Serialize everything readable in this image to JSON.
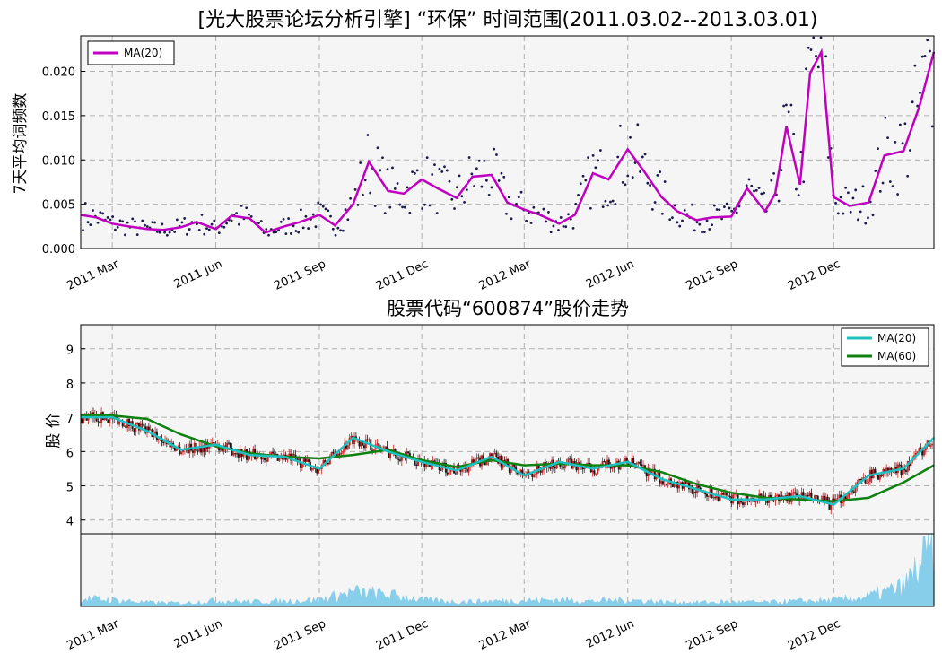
{
  "chart_data": [
    {
      "type": "scatter",
      "title": "[光大股票论坛分析引擎] “环保” 时间范围(2011.03.02--2013.03.01)",
      "ylabel": "7天平均词频数",
      "xlim": [
        "2011-02-01",
        "2013-02-28"
      ],
      "ylim": [
        0,
        0.024
      ],
      "yticks": [
        "0.000",
        "0.005",
        "0.010",
        "0.015",
        "0.020"
      ],
      "xticks": [
        "2011 Mar",
        "2011 Jun",
        "2011 Sep",
        "2011 Dec",
        "2012 Mar",
        "2012 Jun",
        "2012 Sep",
        "2012 Dec"
      ],
      "grid": true,
      "legend_position": "top-left",
      "series": [
        {
          "name": "MA(20)",
          "color": "#c000c0",
          "x": [
            "2011-02-01",
            "2011-02-15",
            "2011-03-01",
            "2011-03-15",
            "2011-04-01",
            "2011-04-15",
            "2011-05-01",
            "2011-05-15",
            "2011-06-01",
            "2011-06-15",
            "2011-07-01",
            "2011-07-15",
            "2011-08-01",
            "2011-08-15",
            "2011-09-01",
            "2011-09-15",
            "2011-10-01",
            "2011-10-15",
            "2011-11-01",
            "2011-11-15",
            "2011-12-01",
            "2011-12-15",
            "2012-01-01",
            "2012-01-15",
            "2012-02-01",
            "2012-02-15",
            "2012-03-01",
            "2012-03-15",
            "2012-04-01",
            "2012-04-15",
            "2012-05-01",
            "2012-05-15",
            "2012-06-01",
            "2012-06-15",
            "2012-07-01",
            "2012-07-15",
            "2012-08-01",
            "2012-08-15",
            "2012-09-01",
            "2012-09-15",
            "2012-10-01",
            "2012-10-10",
            "2012-10-20",
            "2012-11-01",
            "2012-11-10",
            "2012-11-20",
            "2012-12-01",
            "2012-12-15",
            "2013-01-01",
            "2013-01-15",
            "2013-02-01",
            "2013-02-15",
            "2013-02-28"
          ],
          "values": [
            0.0038,
            0.0035,
            0.0028,
            0.0025,
            0.0022,
            0.0021,
            0.0024,
            0.003,
            0.0022,
            0.0037,
            0.0034,
            0.0018,
            0.0025,
            0.003,
            0.0038,
            0.0026,
            0.005,
            0.0098,
            0.0065,
            0.0062,
            0.0078,
            0.0068,
            0.0057,
            0.0081,
            0.0083,
            0.0052,
            0.0044,
            0.0038,
            0.0028,
            0.0038,
            0.0085,
            0.0078,
            0.0112,
            0.0088,
            0.0058,
            0.0042,
            0.0032,
            0.0035,
            0.0036,
            0.0068,
            0.0042,
            0.0062,
            0.0138,
            0.0072,
            0.0198,
            0.0222,
            0.0058,
            0.0048,
            0.0052,
            0.0105,
            0.011,
            0.016,
            0.0222
          ]
        }
      ]
    },
    {
      "type": "candlestick",
      "title": "股票代码“600874”股价走势",
      "ylabel": "股 价",
      "xlim": [
        "2011-02-01",
        "2013-02-28"
      ],
      "ylim": [
        3.6,
        9.7
      ],
      "yticks": [
        "4",
        "5",
        "6",
        "7",
        "8",
        "9"
      ],
      "grid": true,
      "legend_position": "top-right",
      "series": [
        {
          "name": "MA(20)",
          "color": "#20c0c0",
          "x": [
            "2011-02-01",
            "2011-03-01",
            "2011-04-01",
            "2011-05-01",
            "2011-06-01",
            "2011-07-01",
            "2011-08-01",
            "2011-09-01",
            "2011-10-01",
            "2011-11-01",
            "2011-12-01",
            "2012-01-01",
            "2012-02-01",
            "2012-03-01",
            "2012-04-01",
            "2012-05-01",
            "2012-06-01",
            "2012-07-01",
            "2012-08-01",
            "2012-09-01",
            "2012-10-01",
            "2012-11-01",
            "2012-12-01",
            "2013-01-01",
            "2013-02-01",
            "2013-02-28"
          ],
          "values": [
            7.0,
            7.0,
            6.6,
            6.05,
            6.2,
            5.9,
            5.85,
            5.5,
            6.4,
            6.0,
            5.7,
            5.45,
            5.85,
            5.3,
            5.7,
            5.5,
            5.7,
            5.2,
            4.9,
            4.6,
            4.6,
            4.7,
            4.45,
            5.3,
            5.5,
            6.4
          ]
        },
        {
          "name": "MA(60)",
          "color": "#108010",
          "x": [
            "2011-02-01",
            "2011-03-01",
            "2011-04-01",
            "2011-05-01",
            "2011-06-01",
            "2011-07-01",
            "2011-08-01",
            "2011-09-01",
            "2011-10-01",
            "2011-11-01",
            "2011-12-01",
            "2012-01-01",
            "2012-02-01",
            "2012-03-01",
            "2012-04-01",
            "2012-05-01",
            "2012-06-01",
            "2012-07-01",
            "2012-08-01",
            "2012-09-01",
            "2012-10-01",
            "2012-11-01",
            "2012-12-01",
            "2013-01-01",
            "2013-02-01",
            "2013-02-28"
          ],
          "values": [
            7.05,
            7.05,
            6.95,
            6.5,
            6.15,
            5.95,
            5.85,
            5.8,
            5.9,
            6.05,
            5.75,
            5.55,
            5.75,
            5.6,
            5.65,
            5.6,
            5.6,
            5.4,
            5.05,
            4.8,
            4.65,
            4.6,
            4.55,
            4.65,
            5.1,
            5.6
          ]
        }
      ]
    },
    {
      "type": "area",
      "title": "",
      "color": "#87ceeb",
      "xticks": [
        "2011 Mar",
        "2011 Jun",
        "2011 Sep",
        "2011 Dec",
        "2012 Mar",
        "2012 Jun",
        "2012 Sep",
        "2012 Dec"
      ],
      "x": [
        "2011-02-01",
        "2011-03-01",
        "2011-04-01",
        "2011-05-01",
        "2011-06-01",
        "2011-07-01",
        "2011-08-01",
        "2011-09-01",
        "2011-10-01",
        "2011-11-01",
        "2011-12-01",
        "2012-01-01",
        "2012-02-01",
        "2012-03-01",
        "2012-04-01",
        "2012-05-01",
        "2012-06-01",
        "2012-07-01",
        "2012-08-01",
        "2012-09-01",
        "2012-10-01",
        "2012-11-01",
        "2012-12-01",
        "2013-01-01",
        "2013-02-01",
        "2013-02-28"
      ],
      "values": [
        0.12,
        0.1,
        0.06,
        0.05,
        0.09,
        0.07,
        0.08,
        0.1,
        0.22,
        0.18,
        0.1,
        0.07,
        0.08,
        0.09,
        0.1,
        0.08,
        0.1,
        0.07,
        0.06,
        0.07,
        0.06,
        0.08,
        0.09,
        0.15,
        0.3,
        0.9
      ]
    }
  ]
}
